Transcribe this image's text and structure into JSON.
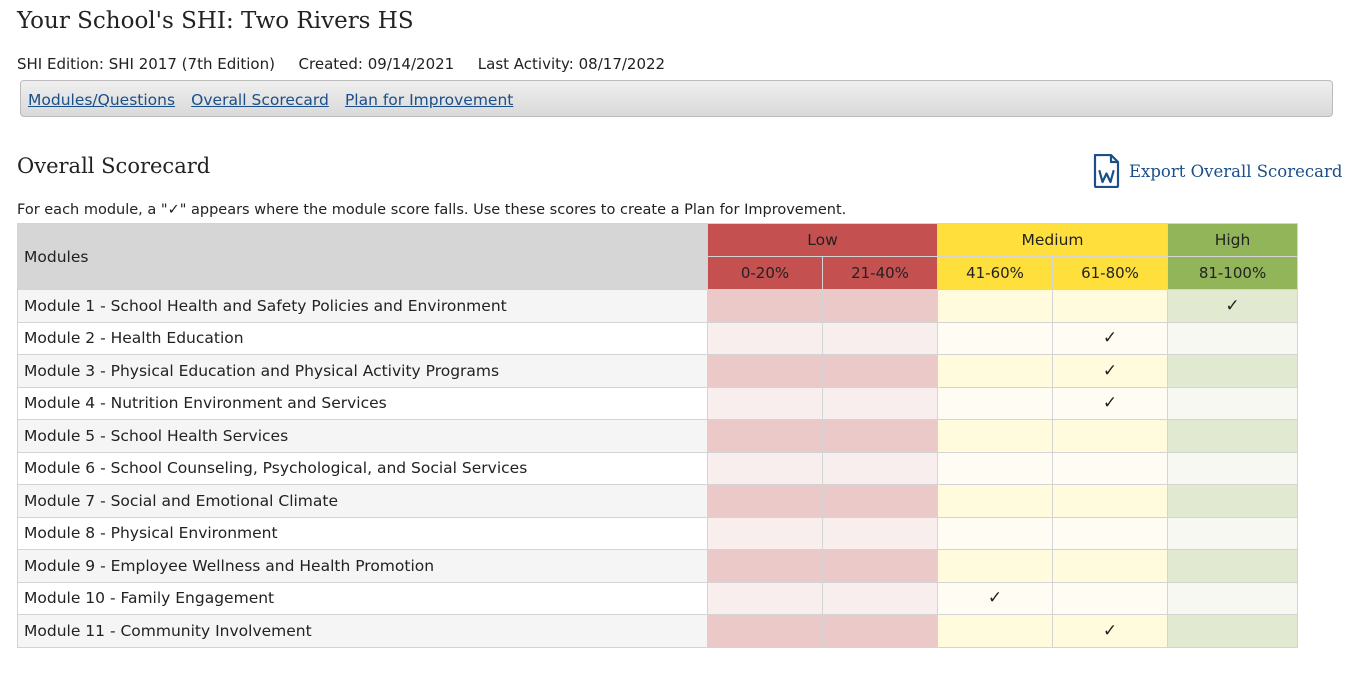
{
  "page": {
    "title": "Your School's SHI: Two Rivers HS",
    "edition_label": "SHI Edition:",
    "edition_value": "SHI 2017 (7th Edition)",
    "created_label": "Created:",
    "created_value": "09/14/2021",
    "last_activity_label": "Last Activity:",
    "last_activity_value": "08/17/2022"
  },
  "nav": {
    "items": [
      {
        "label": "Modules/Questions"
      },
      {
        "label": "Overall Scorecard"
      },
      {
        "label": "Plan for Improvement"
      }
    ]
  },
  "section": {
    "title": "Overall Scorecard",
    "export_label": "Export Overall Scorecard",
    "export_icon": "word-document-icon",
    "instructions": "For each module, a \"✓\" appears where the module score falls. Use these scores to create a Plan for Improvement."
  },
  "table": {
    "modules_header": "Modules",
    "groups": {
      "low": "Low",
      "medium": "Medium",
      "high": "High"
    },
    "ranges": [
      "0-20%",
      "21-40%",
      "41-60%",
      "61-80%",
      "81-100%"
    ],
    "check_mark": "✓",
    "colors": {
      "low": "#c55050",
      "medium": "#ffdf3c",
      "high": "#93b55a"
    },
    "rows": [
      {
        "name": "Module 1 - School Health and Safety Policies and Environment",
        "score_range": "81-100%"
      },
      {
        "name": "Module 2 - Health Education",
        "score_range": "61-80%"
      },
      {
        "name": "Module 3 - Physical Education and Physical Activity Programs",
        "score_range": "61-80%"
      },
      {
        "name": "Module 4 - Nutrition Environment and Services",
        "score_range": "61-80%"
      },
      {
        "name": "Module 5 - School Health Services",
        "score_range": ""
      },
      {
        "name": "Module 6 - School Counseling, Psychological, and Social Services",
        "score_range": ""
      },
      {
        "name": "Module 7 - Social and Emotional Climate",
        "score_range": ""
      },
      {
        "name": "Module 8 - Physical Environment",
        "score_range": ""
      },
      {
        "name": "Module 9 - Employee Wellness and Health Promotion",
        "score_range": ""
      },
      {
        "name": "Module 10 - Family Engagement",
        "score_range": "41-60%"
      },
      {
        "name": "Module 11 - Community Involvement",
        "score_range": "61-80%"
      }
    ]
  }
}
